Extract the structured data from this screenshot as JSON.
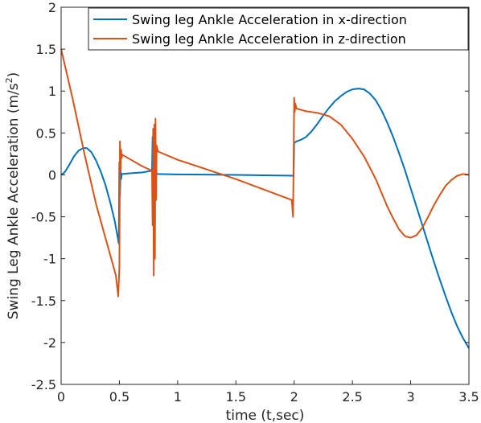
{
  "chart_data": {
    "type": "line",
    "title": "",
    "xlabel": "time (t,sec)",
    "ylabel": "Swing Leg Ankle Acceleration (m/s",
    "ylabel_superscript": "2",
    "ylabel_suffix": ")",
    "xlim": [
      0,
      3.5
    ],
    "ylim": [
      -2.5,
      2
    ],
    "xticks": [
      0,
      0.5,
      1,
      1.5,
      2,
      2.5,
      3,
      3.5
    ],
    "yticks": [
      -2.5,
      -2,
      -1.5,
      -1,
      -0.5,
      0,
      0.5,
      1,
      1.5,
      2
    ],
    "xtick_labels": [
      "0",
      "0.5",
      "1",
      "1.5",
      "2",
      "2.5",
      "3",
      "3.5"
    ],
    "ytick_labels": [
      "-2.5",
      "-2",
      "-1.5",
      "-1",
      "-0.5",
      "0",
      "0.5",
      "1",
      "1.5",
      "2"
    ],
    "grid": false,
    "legend_position": "top-right",
    "series": [
      {
        "name": "Swing leg Ankle Acceleration in x-direction",
        "color": "#0072BD",
        "points": [
          [
            0,
            0
          ],
          [
            0.03,
            0.03
          ],
          [
            0.07,
            0.12
          ],
          [
            0.11,
            0.22
          ],
          [
            0.15,
            0.29
          ],
          [
            0.19,
            0.32
          ],
          [
            0.22,
            0.32
          ],
          [
            0.26,
            0.27
          ],
          [
            0.3,
            0.17
          ],
          [
            0.34,
            0.04
          ],
          [
            0.38,
            -0.12
          ],
          [
            0.42,
            -0.32
          ],
          [
            0.46,
            -0.55
          ],
          [
            0.49,
            -0.78
          ],
          [
            0.495,
            -0.82
          ],
          [
            0.5,
            0.15
          ],
          [
            0.505,
            -0.25
          ],
          [
            0.51,
            0.08
          ],
          [
            0.515,
            -0.05
          ],
          [
            0.52,
            0.01
          ],
          [
            0.6,
            0.02
          ],
          [
            0.7,
            0.03
          ],
          [
            0.78,
            0.05
          ],
          [
            0.785,
            0.45
          ],
          [
            0.79,
            -0.35
          ],
          [
            0.795,
            0.52
          ],
          [
            0.8,
            -0.3
          ],
          [
            0.805,
            0.35
          ],
          [
            0.81,
            -0.1
          ],
          [
            0.815,
            0.1
          ],
          [
            0.82,
            0.01
          ],
          [
            1.0,
            0.005
          ],
          [
            1.5,
            0.0
          ],
          [
            1.99,
            -0.01
          ],
          [
            1.995,
            -0.02
          ],
          [
            2.0,
            0.38
          ],
          [
            2.02,
            0.4
          ],
          [
            2.06,
            0.42
          ],
          [
            2.1,
            0.45
          ],
          [
            2.15,
            0.52
          ],
          [
            2.2,
            0.61
          ],
          [
            2.25,
            0.71
          ],
          [
            2.3,
            0.8
          ],
          [
            2.35,
            0.88
          ],
          [
            2.4,
            0.94
          ],
          [
            2.45,
            0.99
          ],
          [
            2.5,
            1.02
          ],
          [
            2.55,
            1.03
          ],
          [
            2.6,
            1.02
          ],
          [
            2.65,
            0.97
          ],
          [
            2.7,
            0.89
          ],
          [
            2.75,
            0.77
          ],
          [
            2.8,
            0.62
          ],
          [
            2.85,
            0.45
          ],
          [
            2.9,
            0.26
          ],
          [
            2.95,
            0.06
          ],
          [
            3.0,
            -0.16
          ],
          [
            3.05,
            -0.38
          ],
          [
            3.1,
            -0.6
          ],
          [
            3.15,
            -0.82
          ],
          [
            3.2,
            -1.04
          ],
          [
            3.25,
            -1.25
          ],
          [
            3.3,
            -1.45
          ],
          [
            3.35,
            -1.64
          ],
          [
            3.4,
            -1.81
          ],
          [
            3.45,
            -1.95
          ],
          [
            3.5,
            -2.07
          ]
        ]
      },
      {
        "name": "Swing leg Ankle Acceleration in z-direction",
        "color": "#D95319",
        "points": [
          [
            0,
            1.5
          ],
          [
            0.1,
            0.9
          ],
          [
            0.2,
            0.25
          ],
          [
            0.3,
            -0.35
          ],
          [
            0.4,
            -0.85
          ],
          [
            0.47,
            -1.2
          ],
          [
            0.49,
            -1.45
          ],
          [
            0.5,
            -1.1
          ],
          [
            0.505,
            0.4
          ],
          [
            0.51,
            0.05
          ],
          [
            0.515,
            0.3
          ],
          [
            0.52,
            0.2
          ],
          [
            0.525,
            0.24
          ],
          [
            0.6,
            0.18
          ],
          [
            0.7,
            0.1
          ],
          [
            0.78,
            0.05
          ],
          [
            0.785,
            -0.6
          ],
          [
            0.79,
            0.55
          ],
          [
            0.795,
            -1.2
          ],
          [
            0.8,
            0.6
          ],
          [
            0.805,
            -1.0
          ],
          [
            0.81,
            0.67
          ],
          [
            0.815,
            -0.3
          ],
          [
            0.82,
            0.35
          ],
          [
            0.83,
            0.28
          ],
          [
            1.0,
            0.18
          ],
          [
            1.5,
            -0.05
          ],
          [
            1.98,
            -0.3
          ],
          [
            1.99,
            -0.5
          ],
          [
            1.995,
            0.1
          ],
          [
            2.0,
            0.92
          ],
          [
            2.005,
            0.75
          ],
          [
            2.01,
            0.85
          ],
          [
            2.02,
            0.79
          ],
          [
            2.05,
            0.78
          ],
          [
            2.1,
            0.76
          ],
          [
            2.2,
            0.74
          ],
          [
            2.3,
            0.7
          ],
          [
            2.4,
            0.6
          ],
          [
            2.5,
            0.43
          ],
          [
            2.6,
            0.22
          ],
          [
            2.7,
            -0.05
          ],
          [
            2.8,
            -0.38
          ],
          [
            2.85,
            -0.52
          ],
          [
            2.9,
            -0.65
          ],
          [
            2.95,
            -0.73
          ],
          [
            3.0,
            -0.75
          ],
          [
            3.05,
            -0.72
          ],
          [
            3.1,
            -0.63
          ],
          [
            3.15,
            -0.5
          ],
          [
            3.2,
            -0.36
          ],
          [
            3.25,
            -0.24
          ],
          [
            3.3,
            -0.13
          ],
          [
            3.35,
            -0.06
          ],
          [
            3.4,
            -0.01
          ],
          [
            3.45,
            0.01
          ],
          [
            3.5,
            0.0
          ]
        ]
      }
    ]
  }
}
